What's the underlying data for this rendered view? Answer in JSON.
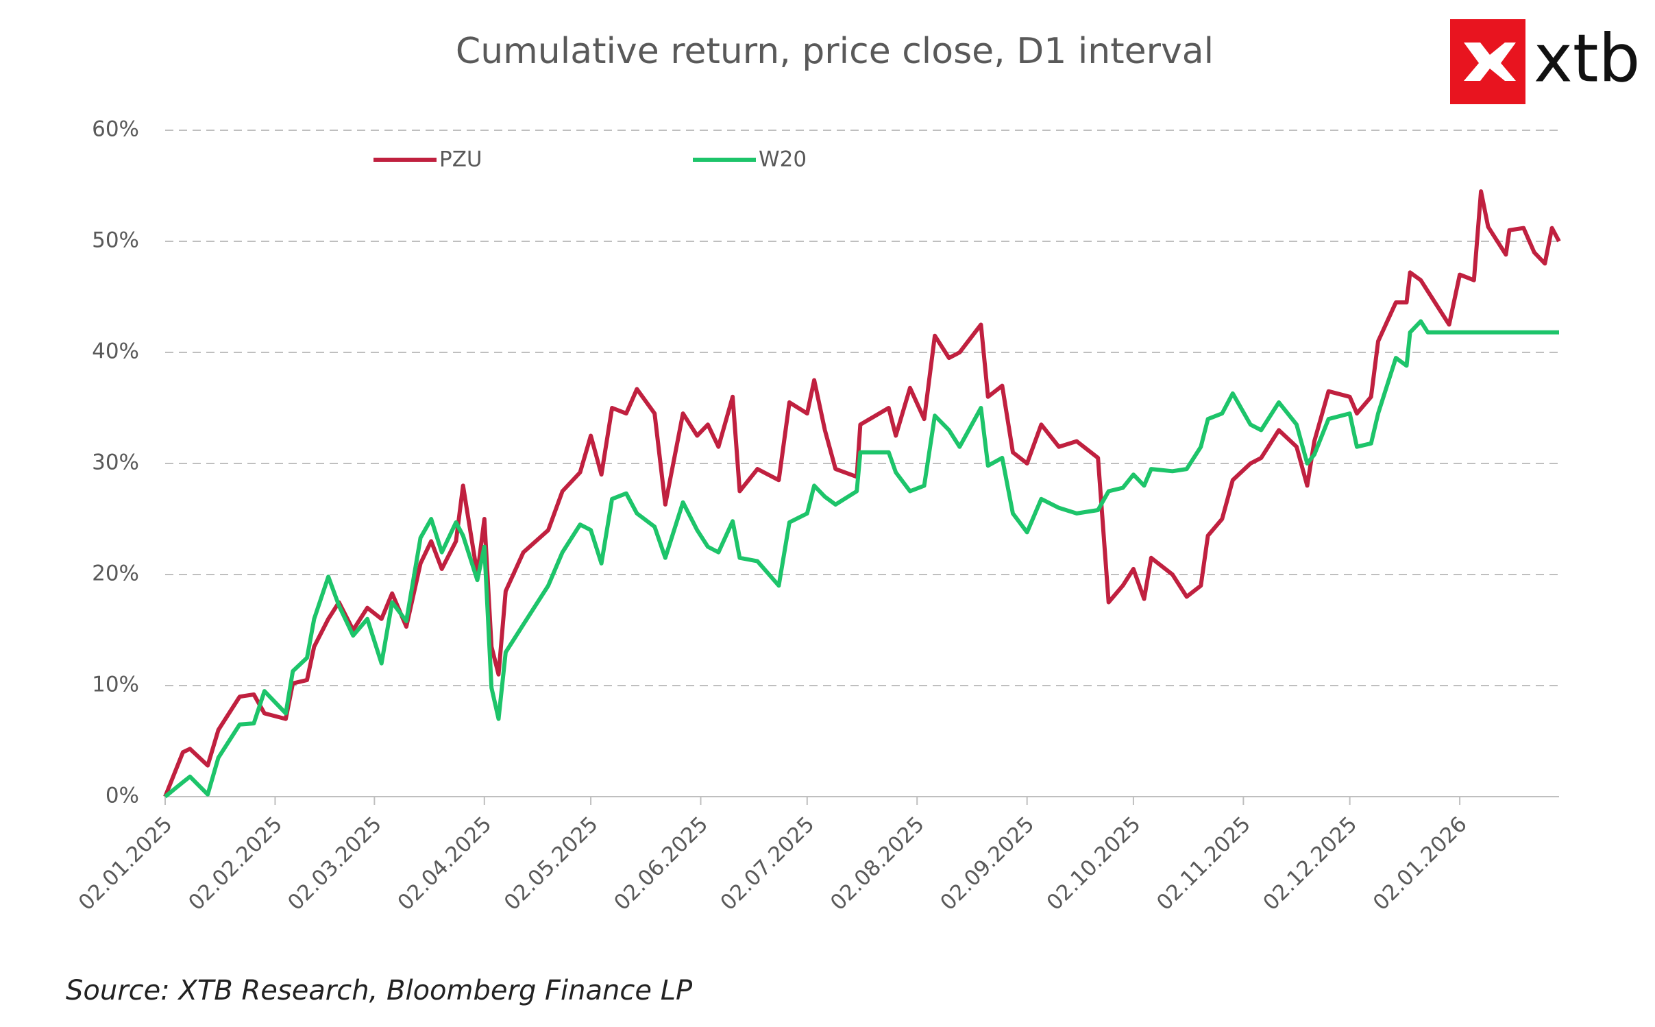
{
  "chart_data": {
    "type": "line",
    "title": "Cumulative return, price close, D1 interval",
    "source": "Source: XTB Research, Bloomberg Finance LP",
    "x": [
      "02.01.2025",
      "07.01.2025",
      "09.01.2025",
      "14.01.2025",
      "17.01.2025",
      "23.01.2025",
      "27.01.2025",
      "30.01.2025",
      "05.02.2025",
      "07.02.2025",
      "11.02.2025",
      "13.02.2025",
      "17.02.2025",
      "20.02.2025",
      "24.02.2025",
      "28.02.2025",
      "04.03.2025",
      "07.03.2025",
      "11.03.2025",
      "15.03.2025",
      "18.03.2025",
      "21.03.2025",
      "25.03.2025",
      "27.03.2025",
      "31.03.2025",
      "02.04.2025",
      "04.04.2025",
      "06.04.2025",
      "08.04.2025",
      "13.04.2025",
      "20.04.2025",
      "24.04.2025",
      "29.04.2025",
      "02.05.2025",
      "05.05.2025",
      "08.05.2025",
      "12.05.2025",
      "15.05.2025",
      "20.05.2025",
      "23.05.2025",
      "28.05.2025",
      "01.06.2025",
      "04.06.2025",
      "07.06.2025",
      "11.06.2025",
      "13.06.2025",
      "18.06.2025",
      "24.06.2025",
      "27.06.2025",
      "02.07.2025",
      "04.07.2025",
      "07.07.2025",
      "10.07.2025",
      "16.07.2025",
      "17.07.2025",
      "25.07.2025",
      "27.07.2025",
      "31.07.2025",
      "04.08.2025",
      "07.08.2025",
      "11.08.2025",
      "14.08.2025",
      "20.08.2025",
      "22.08.2025",
      "26.08.2025",
      "29.08.2025",
      "02.09.2025",
      "06.09.2025",
      "11.09.2025",
      "16.09.2025",
      "22.09.2025",
      "25.09.2025",
      "29.09.2025",
      "02.10.2025",
      "05.10.2025",
      "07.10.2025",
      "13.10.2025",
      "17.10.2025",
      "21.10.2025",
      "23.10.2025",
      "27.10.2025",
      "30.10.2025",
      "04.11.2025",
      "07.11.2025",
      "12.11.2025",
      "17.11.2025",
      "20.11.2025",
      "22.11.2025",
      "26.11.2025",
      "02.12.2025",
      "04.12.2025",
      "08.12.2025",
      "10.12.2025",
      "15.12.2025",
      "18.12.2025",
      "19.12.2025",
      "22.12.2025",
      "24.12.2025",
      "30.12.2025",
      "02.01.2026",
      "06.01.2026",
      "08.01.2026",
      "10.01.2026",
      "15.01.2026",
      "16.01.2026",
      "20.01.2026",
      "23.01.2026",
      "26.01.2026",
      "28.01.2026",
      "30.01.2026"
    ],
    "series": [
      {
        "name": "PZU",
        "color": "#c0203f",
        "values": [
          0,
          4,
          4.3,
          2.8,
          6,
          9,
          9.2,
          7.5,
          7,
          10.2,
          10.5,
          13.5,
          16,
          17.5,
          15,
          17,
          16,
          18.3,
          15.3,
          21,
          23,
          20.5,
          23,
          28,
          20,
          25,
          13.5,
          11,
          18.5,
          22,
          24,
          27.5,
          29.2,
          32.5,
          29,
          35,
          34.5,
          36.7,
          34.5,
          26.3,
          34.5,
          32.5,
          33.5,
          31.5,
          36,
          27.5,
          29.5,
          28.5,
          35.5,
          34.5,
          37.5,
          33,
          29.5,
          28.8,
          33.5,
          35,
          32.5,
          36.8,
          34,
          41.5,
          39.5,
          40,
          42.5,
          36,
          37,
          31,
          30,
          33.5,
          31.5,
          32,
          30.5,
          17.5,
          19,
          20.5,
          17.8,
          21.5,
          20,
          18,
          19,
          23.5,
          25,
          28.5,
          30,
          30.5,
          33,
          31.5,
          28,
          32,
          36.5,
          36,
          34.5,
          36,
          41,
          44.5,
          44.5,
          47.2,
          46.5,
          45.5,
          42.5,
          47,
          46.5,
          54.5,
          51.3,
          48.8,
          51,
          51.2,
          49,
          48,
          51.2,
          50
        ]
      },
      {
        "name": "W20",
        "color": "#1dc46a",
        "values": [
          0,
          1.3,
          1.8,
          0.2,
          3.5,
          6.5,
          6.6,
          9.5,
          7.5,
          11.3,
          12.5,
          16,
          19.8,
          17.2,
          14.5,
          16,
          12,
          17.5,
          15.8,
          23.3,
          25,
          22,
          24.7,
          23.5,
          19.5,
          22.5,
          9.8,
          7,
          13,
          15.5,
          19,
          22,
          24.5,
          24,
          21,
          26.8,
          27.3,
          25.5,
          24.3,
          21.5,
          26.5,
          24,
          22.5,
          22,
          24.8,
          21.5,
          21.2,
          19,
          24.7,
          25.5,
          28,
          27,
          26.3,
          27.5,
          31,
          31,
          29.2,
          27.5,
          28,
          34.3,
          33,
          31.5,
          35,
          29.8,
          30.5,
          25.5,
          23.8,
          26.8,
          26,
          25.5,
          25.8,
          27.5,
          27.8,
          29,
          28,
          29.5,
          29.3,
          29.5,
          31.5,
          34,
          34.5,
          36.3,
          33.5,
          33,
          35.5,
          33.5,
          30,
          30.8,
          34,
          34.5,
          31.5,
          31.8,
          34.5,
          39.5,
          38.8,
          41.8,
          42.8,
          41.8,
          41.8,
          41.8,
          41.8,
          41.8,
          41.8,
          41.8,
          41.8,
          41.8,
          41.8,
          41.8,
          41.8,
          41.8
        ]
      }
    ],
    "xlim": [
      "02.01.2025",
      "30.01.2026"
    ],
    "xticks": [
      "02.01.2025",
      "02.02.2025",
      "02.03.2025",
      "02.04.2025",
      "02.05.2025",
      "02.06.2025",
      "02.07.2025",
      "02.08.2025",
      "02.09.2025",
      "02.10.2025",
      "02.11.2025",
      "02.12.2025",
      "02.01.2026"
    ],
    "ylim": [
      0,
      60
    ],
    "yticks": [
      {
        "value": 0,
        "label": "0%"
      },
      {
        "value": 10,
        "label": "10%"
      },
      {
        "value": 20,
        "label": "20%"
      },
      {
        "value": 30,
        "label": "30%"
      },
      {
        "value": 40,
        "label": "40%"
      },
      {
        "value": 50,
        "label": "50%"
      },
      {
        "value": 60,
        "label": "60%"
      }
    ],
    "grid": true
  },
  "logo": {
    "text": "xtb"
  }
}
